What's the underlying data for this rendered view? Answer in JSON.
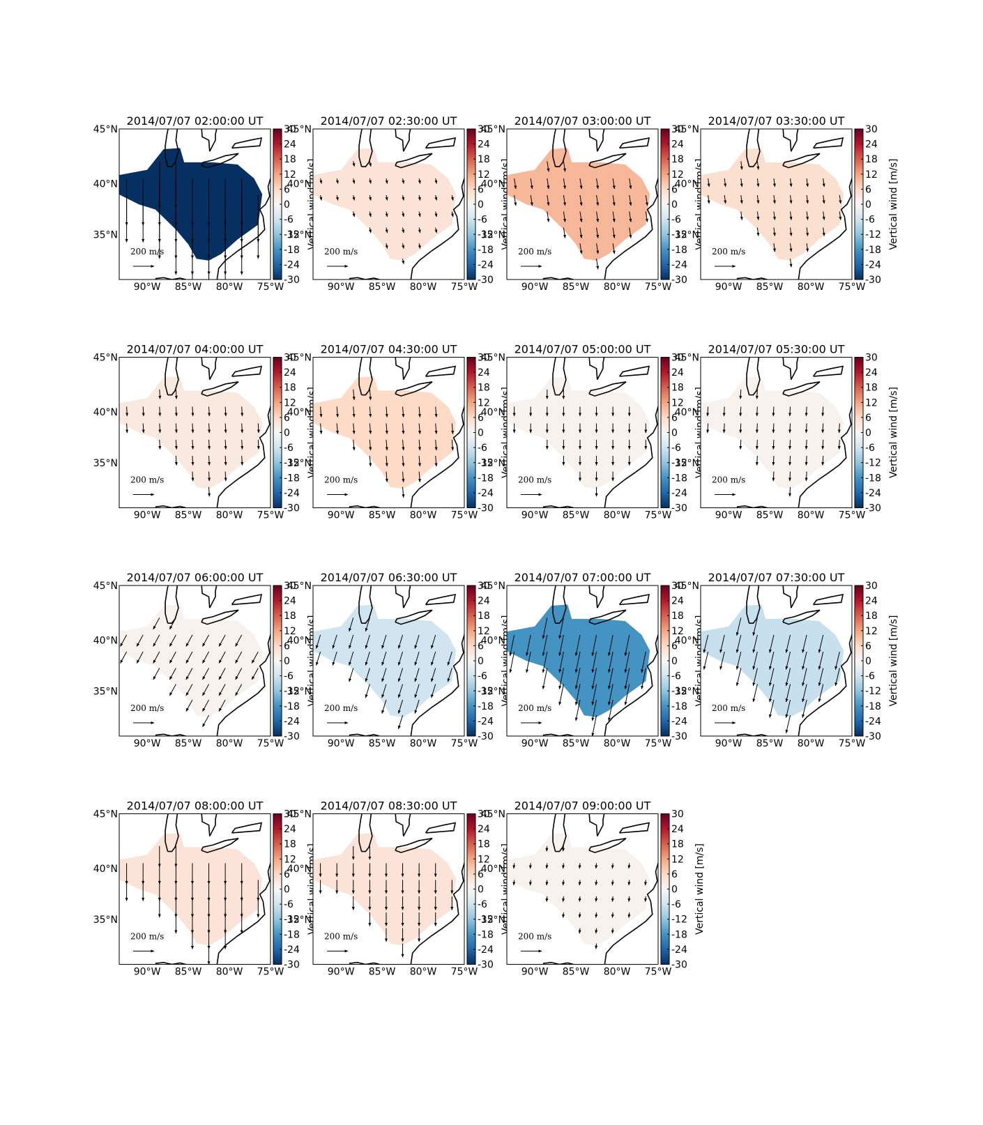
{
  "chart_data": [
    {
      "type": "map",
      "title": "2014/07/07 02:00:00 UT",
      "xlim": [
        -93.4,
        -75
      ],
      "ylim": [
        30.3,
        45
      ],
      "xticks": [
        {
          "value": -90,
          "label": "90°W"
        },
        {
          "value": -85,
          "label": "85°W"
        },
        {
          "value": -80,
          "label": "80°W"
        },
        {
          "value": -75,
          "label": "75°W"
        }
      ],
      "yticks": [
        {
          "value": 35,
          "label": "35°N"
        },
        {
          "value": 40,
          "label": "40°N"
        },
        {
          "value": 45,
          "label": "45°N"
        }
      ],
      "vertical_wind": -30,
      "wind": {
        "u": 0,
        "v": -450
      },
      "key": {
        "value": 200,
        "label": "200 m/s"
      },
      "colorbar": {
        "lim": [
          -30,
          30
        ],
        "ticks": [
          -30,
          -24,
          -18,
          -12,
          -6,
          0,
          6,
          12,
          18,
          24,
          30
        ],
        "label": "Vertical wind [m/s]"
      }
    },
    {
      "type": "map",
      "title": "2014/07/07 02:30:00 UT",
      "xlim": [
        -93.4,
        -75
      ],
      "ylim": [
        30.3,
        45
      ],
      "xticks": [
        {
          "value": -90,
          "label": "90°W"
        },
        {
          "value": -85,
          "label": "85°W"
        },
        {
          "value": -80,
          "label": "80°W"
        },
        {
          "value": -75,
          "label": "75°W"
        }
      ],
      "yticks": [
        {
          "value": 35,
          "label": "35°N"
        },
        {
          "value": 40,
          "label": "40°N"
        },
        {
          "value": 45,
          "label": "45°N"
        }
      ],
      "vertical_wind": 4,
      "wind": {
        "u": 10,
        "v": -50
      },
      "key": {
        "value": 200,
        "label": "200 m/s"
      },
      "colorbar": {
        "lim": [
          -30,
          30
        ],
        "ticks": [
          -30,
          -24,
          -18,
          -12,
          -6,
          0,
          6,
          12,
          18,
          24,
          30
        ],
        "label": "Vertical wind [m/s]"
      }
    },
    {
      "type": "map",
      "title": "2014/07/07 03:00:00 UT",
      "xlim": [
        -93.4,
        -75
      ],
      "ylim": [
        30.3,
        45
      ],
      "xticks": [
        {
          "value": -90,
          "label": "90°W"
        },
        {
          "value": -85,
          "label": "85°W"
        },
        {
          "value": -80,
          "label": "80°W"
        },
        {
          "value": -75,
          "label": "75°W"
        }
      ],
      "yticks": [
        {
          "value": 35,
          "label": "35°N"
        },
        {
          "value": 40,
          "label": "40°N"
        },
        {
          "value": 45,
          "label": "45°N"
        }
      ],
      "vertical_wind": 10,
      "wind": {
        "u": 15,
        "v": -100
      },
      "key": {
        "value": 200,
        "label": "200 m/s"
      },
      "colorbar": {
        "lim": [
          -30,
          30
        ],
        "ticks": [
          -30,
          -24,
          -18,
          -12,
          -6,
          0,
          6,
          12,
          18,
          24,
          30
        ],
        "label": "Vertical wind [m/s]"
      }
    },
    {
      "type": "map",
      "title": "2014/07/07 03:30:00 UT",
      "xlim": [
        -93.4,
        -75
      ],
      "ylim": [
        30.3,
        45
      ],
      "xticks": [
        {
          "value": -90,
          "label": "90°W"
        },
        {
          "value": -85,
          "label": "85°W"
        },
        {
          "value": -80,
          "label": "80°W"
        },
        {
          "value": -75,
          "label": "75°W"
        }
      ],
      "yticks": [
        {
          "value": 35,
          "label": "35°N"
        },
        {
          "value": 40,
          "label": "40°N"
        },
        {
          "value": 45,
          "label": "45°N"
        }
      ],
      "vertical_wind": 5,
      "wind": {
        "u": 10,
        "v": -80
      },
      "key": {
        "value": 200,
        "label": "200 m/s"
      },
      "colorbar": {
        "lim": [
          -30,
          30
        ],
        "ticks": [
          -30,
          -24,
          -18,
          -12,
          -6,
          0,
          6,
          12,
          18,
          24,
          30
        ],
        "label": "Vertical wind [m/s]"
      }
    },
    {
      "type": "map",
      "title": "2014/07/07 04:00:00 UT",
      "xlim": [
        -93.4,
        -75
      ],
      "ylim": [
        30.3,
        45
      ],
      "xticks": [
        {
          "value": -90,
          "label": "90°W"
        },
        {
          "value": -85,
          "label": "85°W"
        },
        {
          "value": -80,
          "label": "80°W"
        },
        {
          "value": -75,
          "label": "75°W"
        }
      ],
      "yticks": [
        {
          "value": 35,
          "label": "35°N"
        },
        {
          "value": 40,
          "label": "40°N"
        },
        {
          "value": 45,
          "label": "45°N"
        }
      ],
      "vertical_wind": 3,
      "wind": {
        "u": 5,
        "v": -90
      },
      "key": {
        "value": 200,
        "label": "200 m/s"
      },
      "colorbar": {
        "lim": [
          -30,
          30
        ],
        "ticks": [
          -30,
          -24,
          -18,
          -12,
          -6,
          0,
          6,
          12,
          18,
          24,
          30
        ],
        "label": "Vertical wind [m/s]"
      }
    },
    {
      "type": "map",
      "title": "2014/07/07 04:30:00 UT",
      "xlim": [
        -93.4,
        -75
      ],
      "ylim": [
        30.3,
        45
      ],
      "xticks": [
        {
          "value": -90,
          "label": "90°W"
        },
        {
          "value": -85,
          "label": "85°W"
        },
        {
          "value": -80,
          "label": "80°W"
        },
        {
          "value": -75,
          "label": "75°W"
        }
      ],
      "yticks": [
        {
          "value": 35,
          "label": "35°N"
        },
        {
          "value": 40,
          "label": "40°N"
        },
        {
          "value": 45,
          "label": "45°N"
        }
      ],
      "vertical_wind": 6,
      "wind": {
        "u": 8,
        "v": -100
      },
      "key": {
        "value": 200,
        "label": "200 m/s"
      },
      "colorbar": {
        "lim": [
          -30,
          30
        ],
        "ticks": [
          -30,
          -24,
          -18,
          -12,
          -6,
          0,
          6,
          12,
          18,
          24,
          30
        ],
        "label": "Vertical wind [m/s]"
      }
    },
    {
      "type": "map",
      "title": "2014/07/07 05:00:00 UT",
      "xlim": [
        -93.4,
        -75
      ],
      "ylim": [
        30.3,
        45
      ],
      "xticks": [
        {
          "value": -90,
          "label": "90°W"
        },
        {
          "value": -85,
          "label": "85°W"
        },
        {
          "value": -80,
          "label": "80°W"
        },
        {
          "value": -75,
          "label": "75°W"
        }
      ],
      "yticks": [
        {
          "value": 35,
          "label": "35°N"
        },
        {
          "value": 40,
          "label": "40°N"
        },
        {
          "value": 45,
          "label": "45°N"
        }
      ],
      "vertical_wind": 1,
      "wind": {
        "u": 0,
        "v": -90
      },
      "key": {
        "value": 200,
        "label": "200 m/s"
      },
      "colorbar": {
        "lim": [
          -30,
          30
        ],
        "ticks": [
          -30,
          -24,
          -18,
          -12,
          -6,
          0,
          6,
          12,
          18,
          24,
          30
        ],
        "label": "Vertical wind [m/s]"
      }
    },
    {
      "type": "map",
      "title": "2014/07/07 05:30:00 UT",
      "xlim": [
        -93.4,
        -75
      ],
      "ylim": [
        30.3,
        45
      ],
      "xticks": [
        {
          "value": -90,
          "label": "90°W"
        },
        {
          "value": -85,
          "label": "85°W"
        },
        {
          "value": -80,
          "label": "80°W"
        },
        {
          "value": -75,
          "label": "75°W"
        }
      ],
      "yticks": [
        {
          "value": 35,
          "label": "35°N"
        },
        {
          "value": 40,
          "label": "40°N"
        },
        {
          "value": 45,
          "label": "45°N"
        }
      ],
      "vertical_wind": 1,
      "wind": {
        "u": -5,
        "v": -90
      },
      "key": {
        "value": 200,
        "label": "200 m/s"
      },
      "colorbar": {
        "lim": [
          -30,
          30
        ],
        "ticks": [
          -30,
          -24,
          -18,
          -12,
          -6,
          0,
          6,
          12,
          18,
          24,
          30
        ],
        "label": "Vertical wind [m/s]"
      }
    },
    {
      "type": "map",
      "title": "2014/07/07 06:00:00 UT",
      "xlim": [
        -93.4,
        -75
      ],
      "ylim": [
        30.3,
        45
      ],
      "xticks": [
        {
          "value": -90,
          "label": "90°W"
        },
        {
          "value": -85,
          "label": "85°W"
        },
        {
          "value": -80,
          "label": "80°W"
        },
        {
          "value": -75,
          "label": "75°W"
        }
      ],
      "yticks": [
        {
          "value": 35,
          "label": "35°N"
        },
        {
          "value": 40,
          "label": "40°N"
        },
        {
          "value": 45,
          "label": "45°N"
        }
      ],
      "vertical_wind": 1,
      "wind": {
        "u": -60,
        "v": -110
      },
      "key": {
        "value": 200,
        "label": "200 m/s"
      },
      "colorbar": {
        "lim": [
          -30,
          30
        ],
        "ticks": [
          -30,
          -24,
          -18,
          -12,
          -6,
          0,
          6,
          12,
          18,
          24,
          30
        ],
        "label": "Vertical wind [m/s]"
      }
    },
    {
      "type": "map",
      "title": "2014/07/07 06:30:00 UT",
      "xlim": [
        -93.4,
        -75
      ],
      "ylim": [
        30.3,
        45
      ],
      "xticks": [
        {
          "value": -90,
          "label": "90°W"
        },
        {
          "value": -85,
          "label": "85°W"
        },
        {
          "value": -80,
          "label": "80°W"
        },
        {
          "value": -75,
          "label": "75°W"
        }
      ],
      "yticks": [
        {
          "value": 35,
          "label": "35°N"
        },
        {
          "value": 40,
          "label": "40°N"
        },
        {
          "value": 45,
          "label": "45°N"
        }
      ],
      "vertical_wind": -6,
      "wind": {
        "u": -40,
        "v": -130
      },
      "key": {
        "value": 200,
        "label": "200 m/s"
      },
      "colorbar": {
        "lim": [
          -30,
          30
        ],
        "ticks": [
          -30,
          -24,
          -18,
          -12,
          -6,
          0,
          6,
          12,
          18,
          24,
          30
        ],
        "label": "Vertical wind [m/s]"
      }
    },
    {
      "type": "map",
      "title": "2014/07/07 07:00:00 UT",
      "xlim": [
        -93.4,
        -75
      ],
      "ylim": [
        30.3,
        45
      ],
      "xticks": [
        {
          "value": -90,
          "label": "90°W"
        },
        {
          "value": -85,
          "label": "85°W"
        },
        {
          "value": -80,
          "label": "80°W"
        },
        {
          "value": -75,
          "label": "75°W"
        }
      ],
      "yticks": [
        {
          "value": 35,
          "label": "35°N"
        },
        {
          "value": 40,
          "label": "40°N"
        },
        {
          "value": 45,
          "label": "45°N"
        }
      ],
      "vertical_wind": -18,
      "wind": {
        "u": -40,
        "v": -200
      },
      "key": {
        "value": 200,
        "label": "200 m/s"
      },
      "colorbar": {
        "lim": [
          -30,
          30
        ],
        "ticks": [
          -30,
          -24,
          -18,
          -12,
          -6,
          0,
          6,
          12,
          18,
          24,
          30
        ],
        "label": "Vertical wind [m/s]"
      }
    },
    {
      "type": "map",
      "title": "2014/07/07 07:30:00 UT",
      "xlim": [
        -93.4,
        -75
      ],
      "ylim": [
        30.3,
        45
      ],
      "xticks": [
        {
          "value": -90,
          "label": "90°W"
        },
        {
          "value": -85,
          "label": "85°W"
        },
        {
          "value": -80,
          "label": "80°W"
        },
        {
          "value": -75,
          "label": "75°W"
        }
      ],
      "yticks": [
        {
          "value": 35,
          "label": "35°N"
        },
        {
          "value": 40,
          "label": "40°N"
        },
        {
          "value": 45,
          "label": "45°N"
        }
      ],
      "vertical_wind": -7,
      "wind": {
        "u": -40,
        "v": -170
      },
      "key": {
        "value": 200,
        "label": "200 m/s"
      },
      "colorbar": {
        "lim": [
          -30,
          30
        ],
        "ticks": [
          -30,
          -24,
          -18,
          -12,
          -6,
          0,
          6,
          12,
          18,
          24,
          30
        ],
        "label": "Vertical wind [m/s]"
      }
    },
    {
      "type": "map",
      "title": "2014/07/07 08:00:00 UT",
      "xlim": [
        -93.4,
        -75
      ],
      "ylim": [
        30.3,
        45
      ],
      "xticks": [
        {
          "value": -90,
          "label": "90°W"
        },
        {
          "value": -85,
          "label": "85°W"
        },
        {
          "value": -80,
          "label": "80°W"
        },
        {
          "value": -75,
          "label": "75°W"
        }
      ],
      "yticks": [
        {
          "value": 35,
          "label": "35°N"
        },
        {
          "value": 40,
          "label": "40°N"
        },
        {
          "value": 45,
          "label": "45°N"
        }
      ],
      "vertical_wind": 4,
      "wind": {
        "u": 0,
        "v": -200
      },
      "key": {
        "value": 200,
        "label": "200 m/s"
      },
      "colorbar": {
        "lim": [
          -30,
          30
        ],
        "ticks": [
          -30,
          -24,
          -18,
          -12,
          -6,
          0,
          6,
          12,
          18,
          24,
          30
        ],
        "label": "Vertical wind [m/s]"
      }
    },
    {
      "type": "map",
      "title": "2014/07/07 08:30:00 UT",
      "xlim": [
        -93.4,
        -75
      ],
      "ylim": [
        30.3,
        45
      ],
      "xticks": [
        {
          "value": -90,
          "label": "90°W"
        },
        {
          "value": -85,
          "label": "85°W"
        },
        {
          "value": -80,
          "label": "80°W"
        },
        {
          "value": -75,
          "label": "75°W"
        }
      ],
      "yticks": [
        {
          "value": 35,
          "label": "35°N"
        },
        {
          "value": 40,
          "label": "40°N"
        },
        {
          "value": 45,
          "label": "45°N"
        }
      ],
      "vertical_wind": 4,
      "wind": {
        "u": 0,
        "v": -130
      },
      "key": {
        "value": 200,
        "label": "200 m/s"
      },
      "colorbar": {
        "lim": [
          -30,
          30
        ],
        "ticks": [
          -30,
          -24,
          -18,
          -12,
          -6,
          0,
          6,
          12,
          18,
          24,
          30
        ],
        "label": "Vertical wind [m/s]"
      }
    },
    {
      "type": "map",
      "title": "2014/07/07 09:00:00 UT",
      "xlim": [
        -93.4,
        -75
      ],
      "ylim": [
        30.3,
        45
      ],
      "xticks": [
        {
          "value": -90,
          "label": "90°W"
        },
        {
          "value": -85,
          "label": "85°W"
        },
        {
          "value": -80,
          "label": "80°W"
        },
        {
          "value": -75,
          "label": "75°W"
        }
      ],
      "yticks": [
        {
          "value": 35,
          "label": "35°N"
        },
        {
          "value": 40,
          "label": "40°N"
        },
        {
          "value": 45,
          "label": "45°N"
        }
      ],
      "vertical_wind": 1,
      "wind": {
        "u": -5,
        "v": -50
      },
      "key": {
        "value": 200,
        "label": "200 m/s"
      },
      "colorbar": {
        "lim": [
          -30,
          30
        ],
        "ticks": [
          -30,
          -24,
          -18,
          -12,
          -6,
          0,
          6,
          12,
          18,
          24,
          30
        ],
        "label": "Vertical wind [m/s]"
      }
    }
  ]
}
